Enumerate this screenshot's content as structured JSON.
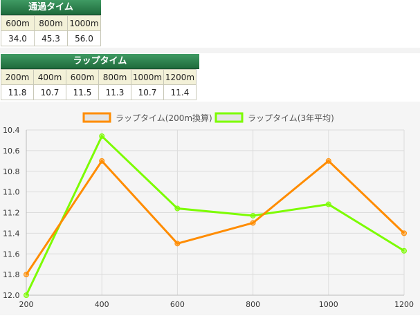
{
  "passing_table": {
    "title": "通過タイム",
    "headers": [
      "600m",
      "800m",
      "1000m"
    ],
    "values": [
      "34.0",
      "45.3",
      "56.0"
    ]
  },
  "lap_table": {
    "title": "ラップタイム",
    "headers": [
      "200m",
      "400m",
      "600m",
      "800m",
      "1000m",
      "1200m"
    ],
    "values": [
      "11.8",
      "10.7",
      "11.5",
      "11.3",
      "10.7",
      "11.4"
    ]
  },
  "chart_data": {
    "type": "line",
    "x": [
      200,
      400,
      600,
      800,
      1000,
      1200
    ],
    "x_ticks": [
      "200",
      "400",
      "600",
      "800",
      "1000",
      "1200"
    ],
    "y_ticks": [
      "10.4",
      "10.6",
      "10.8",
      "11.0",
      "11.2",
      "11.4",
      "11.6",
      "11.8",
      "12.0"
    ],
    "ylim": [
      10.4,
      12.0
    ],
    "y_reversed": true,
    "grid": true,
    "legend_position": "top",
    "series": [
      {
        "name": "ラップタイム(200m換算)",
        "color": "#ff8c00",
        "values": [
          11.8,
          10.7,
          11.5,
          11.3,
          10.7,
          11.4
        ]
      },
      {
        "name": "ラップタイム(3年平均)",
        "color": "#7cfc00",
        "values": [
          12.0,
          10.46,
          11.16,
          11.23,
          11.12,
          11.57
        ]
      }
    ]
  }
}
